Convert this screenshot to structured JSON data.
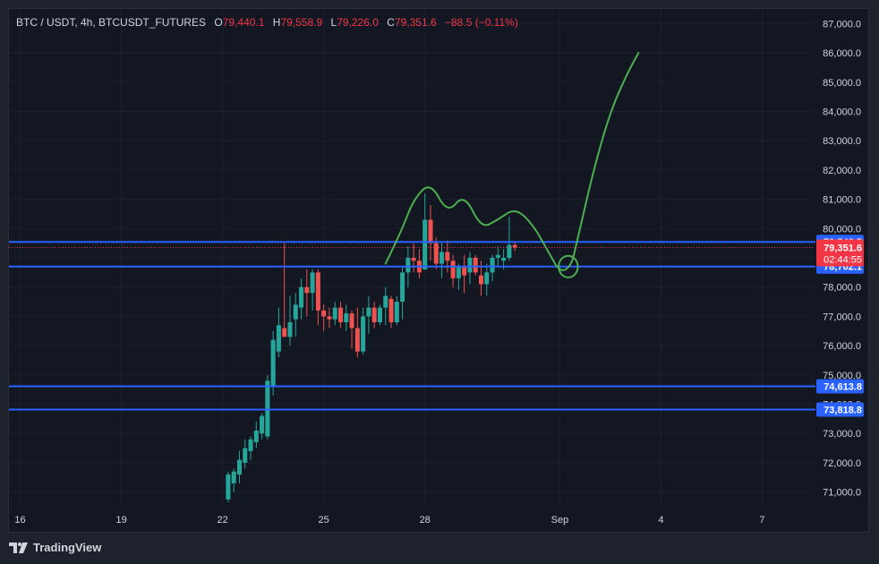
{
  "header": {
    "symbol": "BTC / USDT, 4h, BTCUSDT_FUTURES",
    "open_label": "O",
    "open": "79,440.1",
    "high_label": "H",
    "high": "79,558.9",
    "low_label": "L",
    "low": "79,226.0",
    "close_label": "C",
    "close": "79,351.6",
    "change": "−88.5 (−0.11%)"
  },
  "footer": {
    "brand": "TradingView",
    "logo_icon": "tradingview-logo-icon"
  },
  "colors": {
    "up": "#26a69a",
    "down": "#ef5350",
    "hline": "#2962ff",
    "price_label": "#f23645",
    "drawing": "#4caf50"
  },
  "chart_data": {
    "type": "candlestick",
    "timeframe": "4h",
    "y_range": [
      70500,
      87500
    ],
    "y_ticks": [
      71000,
      72000,
      73000,
      74000,
      75000,
      76000,
      77000,
      78000,
      79000,
      80000,
      81000,
      82000,
      83000,
      84000,
      85000,
      86000,
      87000
    ],
    "y_tick_labels": [
      "71,000.0",
      "72,000.0",
      "73,000.0",
      "74,000.0",
      "75,000.0",
      "76,000.0",
      "77,000.0",
      "78,000.0",
      "79,000.0",
      "80,000.0",
      "81,000.0",
      "82,000.0",
      "83,000.0",
      "84,000.0",
      "85,000.0",
      "86,000.0",
      "87,000.0"
    ],
    "x_ticks": [
      "16",
      "19",
      "22",
      "25",
      "28",
      "Sep",
      "4",
      "7"
    ],
    "x_tick_index": [
      -37,
      -19,
      -1,
      17,
      35,
      59,
      77,
      95
    ],
    "x_range": [
      -39,
      104
    ],
    "candles": [
      [
        70750,
        71700,
        70650,
        71600
      ],
      [
        71300,
        71800,
        71000,
        71700
      ],
      [
        71600,
        72400,
        71300,
        72100
      ],
      [
        72000,
        72800,
        71800,
        72500
      ],
      [
        72400,
        72900,
        72100,
        72800
      ],
      [
        72700,
        73400,
        72500,
        73100
      ],
      [
        73000,
        73700,
        72800,
        73600
      ],
      [
        72900,
        75000,
        72800,
        74800
      ],
      [
        74600,
        76500,
        74300,
        76200
      ],
      [
        75800,
        77300,
        75600,
        76700
      ],
      [
        76600,
        79500,
        76300,
        76300
      ],
      [
        76300,
        77700,
        76000,
        76800
      ],
      [
        76900,
        77800,
        76300,
        77400
      ],
      [
        77300,
        78300,
        76900,
        78000
      ],
      [
        78000,
        78600,
        77000,
        77800
      ],
      [
        77800,
        78600,
        77200,
        78500
      ],
      [
        78500,
        78600,
        76700,
        77200
      ],
      [
        77200,
        77400,
        76500,
        77000
      ],
      [
        77000,
        77300,
        76600,
        76900
      ],
      [
        76900,
        77500,
        76700,
        77300
      ],
      [
        77300,
        77500,
        76600,
        76800
      ],
      [
        76800,
        77400,
        76500,
        77100
      ],
      [
        77100,
        77200,
        75900,
        76600
      ],
      [
        76600,
        77300,
        75600,
        75800
      ],
      [
        75800,
        77300,
        75700,
        77000
      ],
      [
        77000,
        77700,
        76400,
        77300
      ],
      [
        77300,
        77500,
        76600,
        76800
      ],
      [
        76800,
        77400,
        76700,
        77300
      ],
      [
        77300,
        78000,
        76700,
        77700
      ],
      [
        77600,
        77700,
        76600,
        76800
      ],
      [
        76800,
        77700,
        76700,
        77500
      ],
      [
        77500,
        78700,
        76900,
        78500
      ],
      [
        78500,
        79400,
        78000,
        79000
      ],
      [
        79000,
        79500,
        78500,
        78900
      ],
      [
        78900,
        79300,
        78300,
        78500
      ],
      [
        78600,
        81200,
        78600,
        80300
      ],
      [
        80300,
        80800,
        78900,
        79500
      ],
      [
        79500,
        79700,
        78600,
        78800
      ],
      [
        78800,
        79500,
        78300,
        79200
      ],
      [
        79200,
        79600,
        78500,
        78900
      ],
      [
        78900,
        79100,
        78000,
        78300
      ],
      [
        78300,
        78800,
        77900,
        78700
      ],
      [
        78700,
        79100,
        77800,
        78400
      ],
      [
        78500,
        79200,
        78100,
        79000
      ],
      [
        79000,
        79100,
        78400,
        78500
      ],
      [
        78400,
        78900,
        77700,
        78100
      ],
      [
        78100,
        78800,
        77700,
        78500
      ],
      [
        78500,
        79100,
        78200,
        79000
      ],
      [
        79000,
        79400,
        78700,
        79100
      ],
      [
        78900,
        79300,
        78600,
        79000
      ],
      [
        79000,
        80400,
        78900,
        79440
      ],
      [
        79440,
        79559,
        79226,
        79352
      ]
    ],
    "horizontal_levels": [
      "79,543.5",
      "78,702.1",
      "74,613.8",
      "73,818.8"
    ],
    "horizontal_level_values": [
      79543.5,
      78702.1,
      74613.8,
      73818.8
    ],
    "last_price": "79,351.6",
    "last_price_value": 79351.6,
    "countdown": "02:44:55",
    "drawing_path": [
      [
        28,
        78800
      ],
      [
        31,
        80000
      ],
      [
        33,
        81000
      ],
      [
        36,
        81600
      ],
      [
        39,
        80500
      ],
      [
        42,
        81200
      ],
      [
        45,
        80000
      ],
      [
        48,
        80300
      ],
      [
        51,
        80700
      ],
      [
        54,
        80200
      ],
      [
        57,
        79200
      ],
      [
        59,
        78500
      ],
      [
        61,
        78700
      ],
      [
        62,
        79500
      ],
      [
        65,
        82000
      ],
      [
        68,
        84000
      ],
      [
        71,
        85300
      ],
      [
        73,
        86000
      ]
    ],
    "drawing_circle": {
      "x": 60.5,
      "y": 78700,
      "rx_bars": 1.7,
      "ry_value": 370
    }
  }
}
